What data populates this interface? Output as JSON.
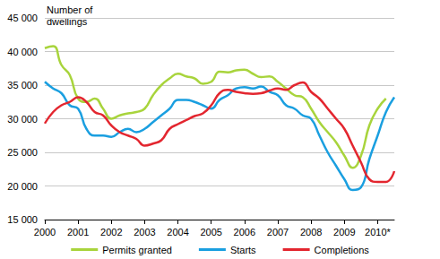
{
  "chart_data": {
    "type": "line",
    "y_label": "Number of\ndwellings",
    "categories": [
      "2000",
      null,
      null,
      null,
      "2001",
      null,
      null,
      null,
      "2002",
      null,
      null,
      null,
      "2003",
      null,
      null,
      null,
      "2004",
      null,
      null,
      null,
      "2005",
      null,
      null,
      null,
      "2006",
      null,
      null,
      null,
      "2007",
      null,
      null,
      null,
      "2008",
      null,
      null,
      null,
      "2009",
      null,
      null,
      null,
      "2010*",
      null,
      null
    ],
    "series": [
      {
        "name": "Permits granted",
        "color": "#a8d43c",
        "values": [
          40500,
          40800,
          38000,
          36500,
          33000,
          32500,
          33000,
          31500,
          30000,
          30500,
          30800,
          31000,
          31500,
          33500,
          35000,
          36000,
          36700,
          36300,
          36000,
          35200,
          35500,
          37000,
          36900,
          37200,
          37300,
          36700,
          36200,
          36300,
          35500,
          34500,
          33500,
          33200,
          31500,
          29500,
          28000,
          26500,
          24500,
          22700,
          24500,
          29000,
          31500,
          33000,
          null
        ]
      },
      {
        "name": "Starts",
        "color": "#1a9fe0",
        "values": [
          35500,
          34500,
          33800,
          32000,
          31500,
          28500,
          27500,
          27500,
          27300,
          28000,
          28500,
          28000,
          28500,
          29500,
          30500,
          31500,
          32800,
          32800,
          32500,
          32000,
          31500,
          32800,
          33500,
          34500,
          34700,
          34500,
          34800,
          34000,
          33500,
          32000,
          31500,
          30500,
          30000,
          27500,
          25000,
          23000,
          21000,
          19400,
          19800,
          24000,
          27500,
          31000,
          33200
        ]
      },
      {
        "name": "Completions",
        "color": "#e3262f",
        "values": [
          29300,
          31000,
          32000,
          32500,
          33200,
          32500,
          31000,
          30500,
          29000,
          28000,
          27500,
          27000,
          26000,
          26300,
          26800,
          28500,
          29200,
          29800,
          30400,
          30800,
          32000,
          33800,
          34300,
          34000,
          33800,
          33700,
          33800,
          34200,
          34500,
          34300,
          35000,
          35400,
          34000,
          33000,
          31500,
          30000,
          28500,
          26000,
          23500,
          21000,
          20600,
          20600,
          22200
        ]
      }
    ],
    "ylim": [
      15000,
      45000
    ],
    "yticks": [
      {
        "value": 15000,
        "label": "15 000"
      },
      {
        "value": 20000,
        "label": "20 000"
      },
      {
        "value": 25000,
        "label": "25 000"
      },
      {
        "value": 30000,
        "label": "30 000"
      },
      {
        "value": 35000,
        "label": "35 000"
      },
      {
        "value": 40000,
        "label": "40 000"
      },
      {
        "value": 45000,
        "label": "45 000"
      }
    ],
    "grid": true,
    "legend": "bottom"
  }
}
